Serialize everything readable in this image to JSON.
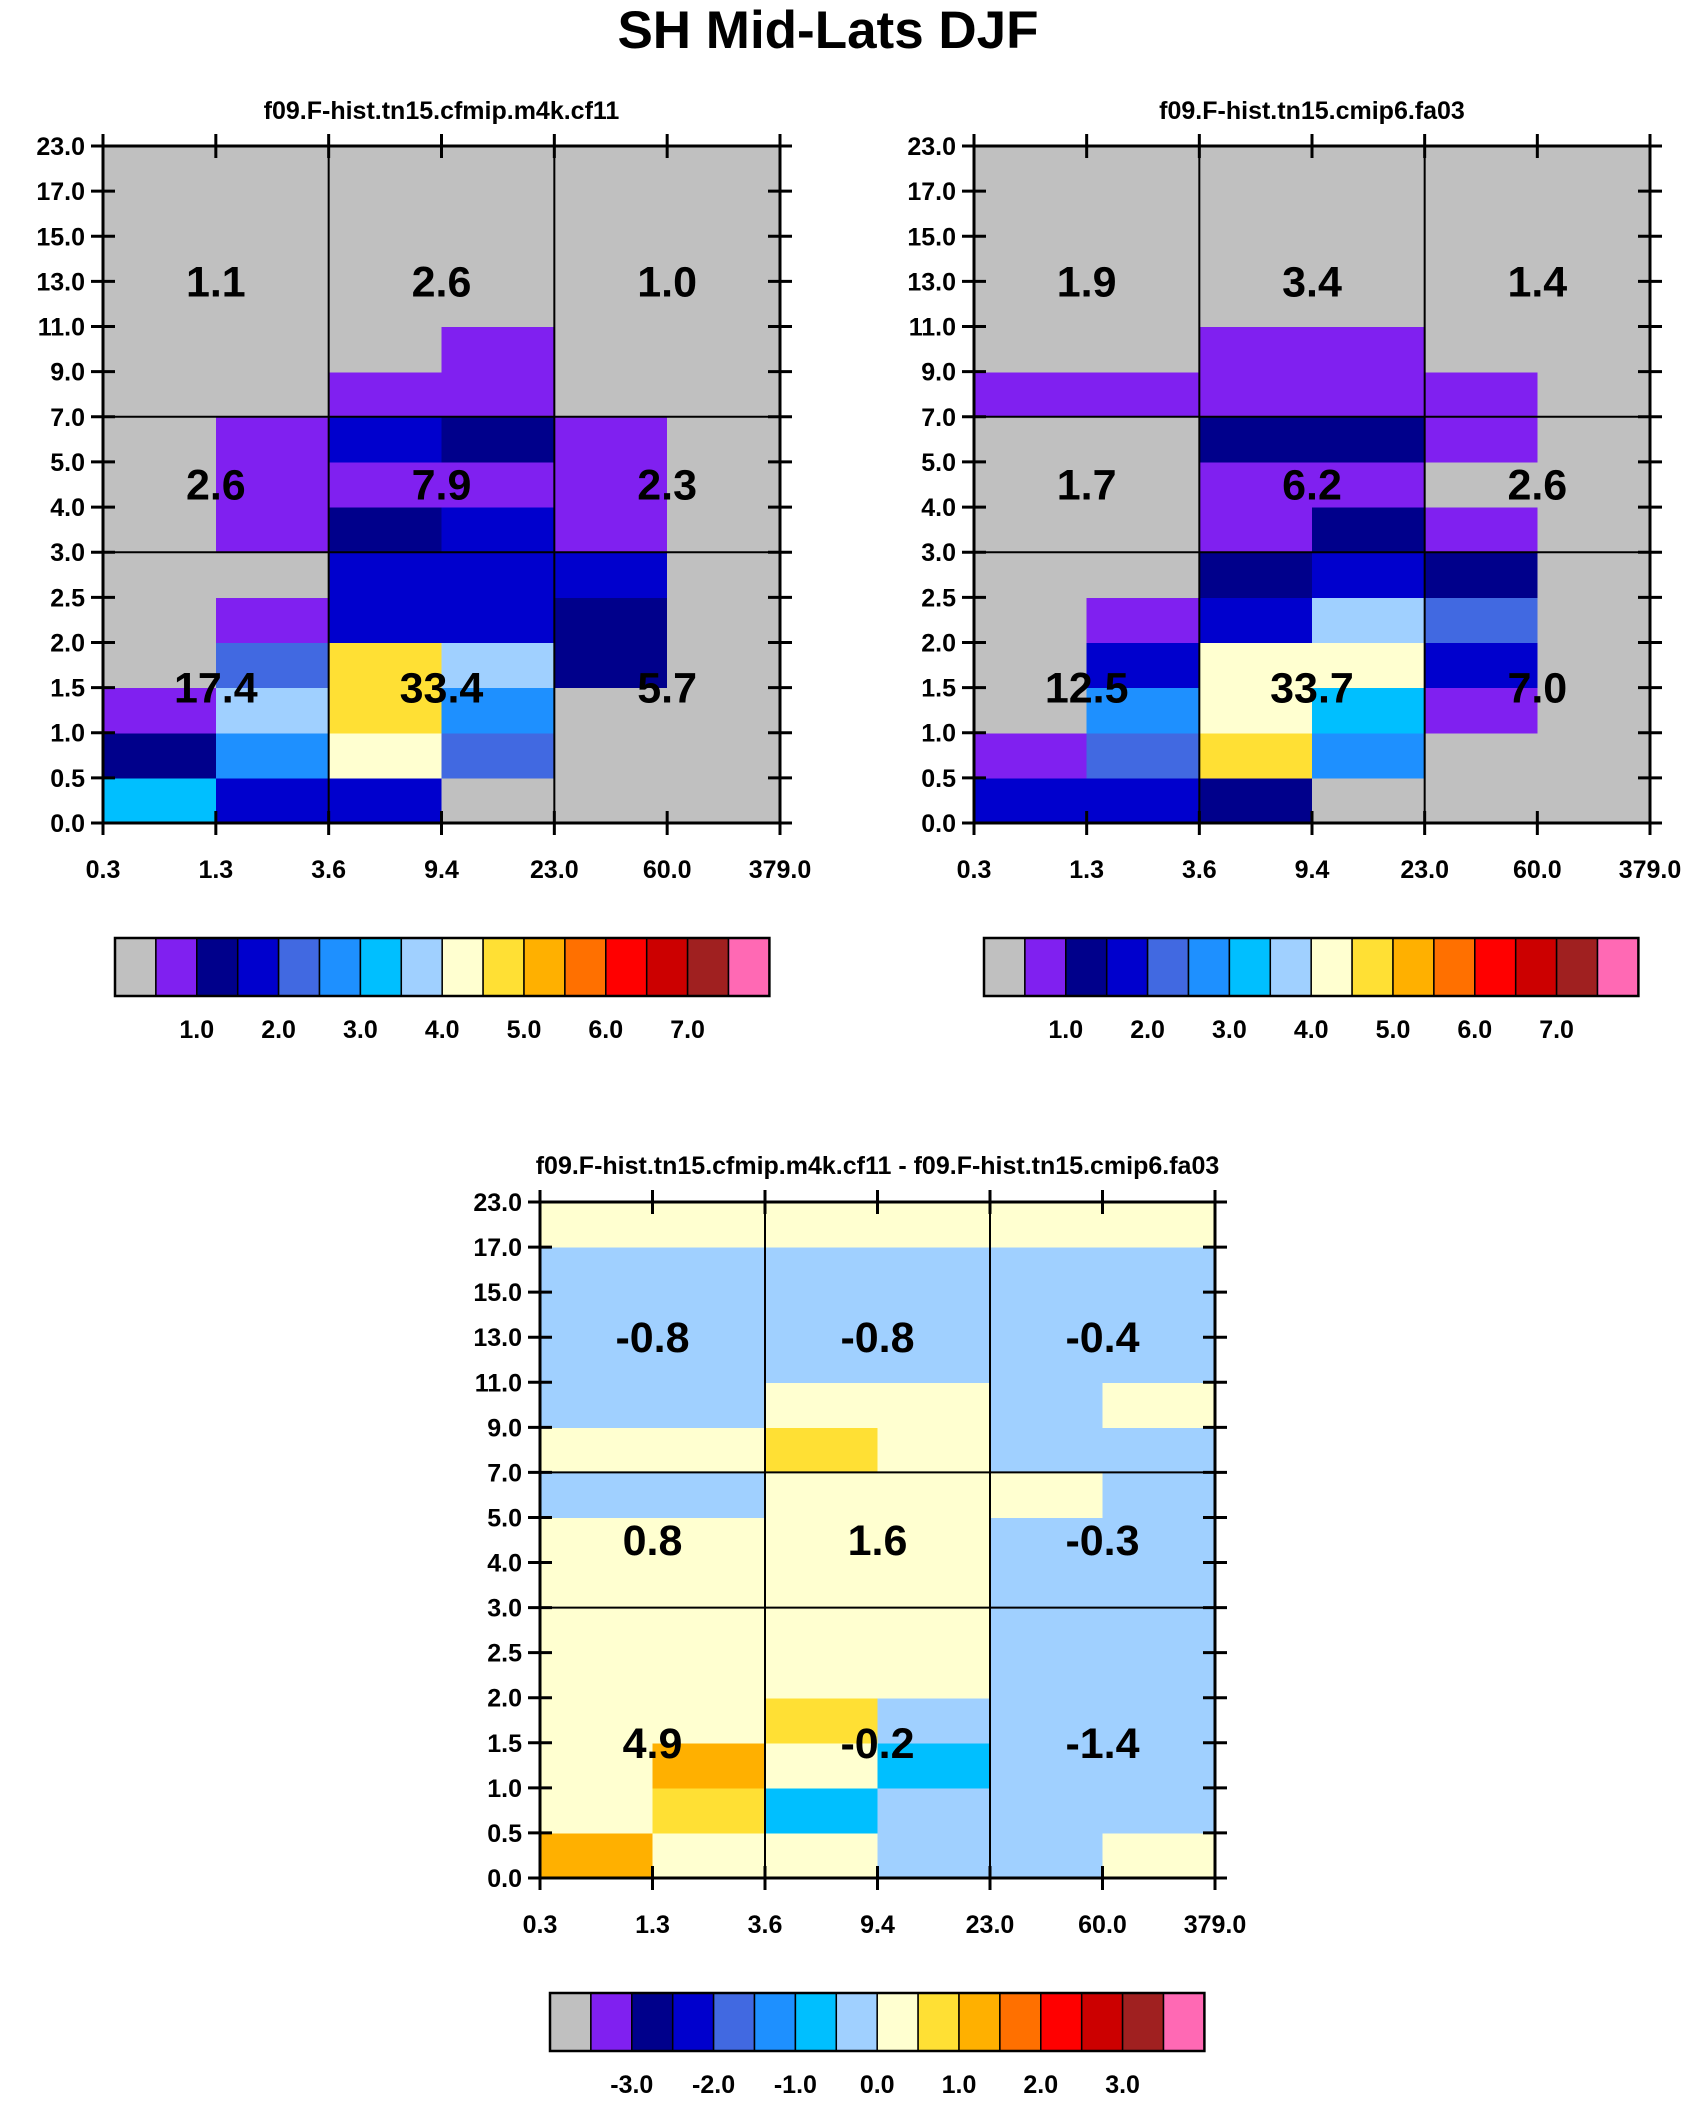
{
  "figure_title": "SH Mid-Lats DJF",
  "colors": {
    "missing": "#c0c0c0",
    "levels": [
      "#c0c0c0",
      "#8020f0",
      "#00008b",
      "#0000cd",
      "#4169e1",
      "#1e90ff",
      "#00bfff",
      "#a0d0ff",
      "#ffffd0",
      "#ffe034",
      "#ffb000",
      "#ff7000",
      "#ff0000",
      "#cc0000",
      "#a02020",
      "#ff69b4"
    ]
  },
  "chart_data": [
    {
      "type": "heatmap",
      "title": "f09.F-hist.tn15.cfmip.m4k.cf11",
      "x_tick_labels": [
        "0.3",
        "1.3",
        "3.6",
        "9.4",
        "23.0",
        "60.0",
        "379.0"
      ],
      "y_tick_labels": [
        "0.0",
        "0.5",
        "1.0",
        "1.5",
        "2.0",
        "2.5",
        "3.0",
        "4.0",
        "5.0",
        "7.0",
        "9.0",
        "11.0",
        "13.0",
        "15.0",
        "17.0",
        "23.0"
      ],
      "grid_x_breaks": [
        2,
        4
      ],
      "grid_y_breaks": [
        6,
        9
      ],
      "cells": [
        [
          6,
          3,
          3,
          0,
          0,
          0
        ],
        [
          2,
          5,
          8,
          4,
          0,
          0
        ],
        [
          1,
          7,
          9,
          5,
          0,
          0
        ],
        [
          0,
          4,
          9,
          7,
          2,
          0
        ],
        [
          0,
          1,
          3,
          3,
          2,
          0
        ],
        [
          0,
          0,
          3,
          3,
          3,
          0
        ],
        [
          0,
          1,
          2,
          3,
          1,
          0
        ],
        [
          0,
          1,
          1,
          1,
          1,
          0
        ],
        [
          0,
          1,
          3,
          2,
          1,
          0
        ],
        [
          0,
          0,
          1,
          1,
          0,
          0
        ],
        [
          0,
          0,
          0,
          1,
          0,
          0
        ],
        [
          0,
          0,
          0,
          0,
          0,
          0
        ],
        [
          0,
          0,
          0,
          0,
          0,
          0
        ],
        [
          0,
          0,
          0,
          0,
          0,
          0
        ],
        [
          0,
          0,
          0,
          0,
          0,
          0
        ]
      ],
      "block_values": [
        [
          "17.4",
          "33.4",
          "5.7"
        ],
        [
          "2.6",
          "7.9",
          "2.3"
        ],
        [
          "1.1",
          "2.6",
          "1.0"
        ]
      ],
      "colorbar_tick_labels": [
        "1.0",
        "2.0",
        "3.0",
        "4.0",
        "5.0",
        "6.0",
        "7.0"
      ]
    },
    {
      "type": "heatmap",
      "title": "f09.F-hist.tn15.cmip6.fa03",
      "x_tick_labels": [
        "0.3",
        "1.3",
        "3.6",
        "9.4",
        "23.0",
        "60.0",
        "379.0"
      ],
      "y_tick_labels": [
        "0.0",
        "0.5",
        "1.0",
        "1.5",
        "2.0",
        "2.5",
        "3.0",
        "4.0",
        "5.0",
        "7.0",
        "9.0",
        "11.0",
        "13.0",
        "15.0",
        "17.0",
        "23.0"
      ],
      "grid_x_breaks": [
        2,
        4
      ],
      "grid_y_breaks": [
        6,
        9
      ],
      "cells": [
        [
          3,
          3,
          2,
          0,
          0,
          0
        ],
        [
          1,
          4,
          9,
          5,
          0,
          0
        ],
        [
          0,
          5,
          8,
          6,
          1,
          0
        ],
        [
          0,
          3,
          8,
          8,
          3,
          0
        ],
        [
          0,
          1,
          3,
          7,
          4,
          0
        ],
        [
          0,
          0,
          2,
          3,
          2,
          0
        ],
        [
          0,
          0,
          1,
          2,
          1,
          0
        ],
        [
          0,
          0,
          1,
          1,
          0,
          0
        ],
        [
          0,
          0,
          2,
          2,
          1,
          0
        ],
        [
          1,
          1,
          1,
          1,
          1,
          0
        ],
        [
          0,
          0,
          1,
          1,
          0,
          0
        ],
        [
          0,
          0,
          0,
          0,
          0,
          0
        ],
        [
          0,
          0,
          0,
          0,
          0,
          0
        ],
        [
          0,
          0,
          0,
          0,
          0,
          0
        ],
        [
          0,
          0,
          0,
          0,
          0,
          0
        ]
      ],
      "block_values": [
        [
          "12.5",
          "33.7",
          "7.0"
        ],
        [
          "1.7",
          "6.2",
          "2.6"
        ],
        [
          "1.9",
          "3.4",
          "1.4"
        ]
      ],
      "colorbar_tick_labels": [
        "1.0",
        "2.0",
        "3.0",
        "4.0",
        "5.0",
        "6.0",
        "7.0"
      ]
    },
    {
      "type": "heatmap",
      "title": "f09.F-hist.tn15.cfmip.m4k.cf11 - f09.F-hist.tn15.cmip6.fa03",
      "x_tick_labels": [
        "0.3",
        "1.3",
        "3.6",
        "9.4",
        "23.0",
        "60.0",
        "379.0"
      ],
      "y_tick_labels": [
        "0.0",
        "0.5",
        "1.0",
        "1.5",
        "2.0",
        "2.5",
        "3.0",
        "4.0",
        "5.0",
        "7.0",
        "9.0",
        "11.0",
        "13.0",
        "15.0",
        "17.0",
        "23.0"
      ],
      "grid_x_breaks": [
        2,
        4
      ],
      "grid_y_breaks": [
        6,
        9
      ],
      "cells": [
        [
          10,
          8,
          8,
          7,
          7,
          8
        ],
        [
          8,
          9,
          6,
          7,
          7,
          7
        ],
        [
          8,
          10,
          8,
          6,
          7,
          7
        ],
        [
          8,
          8,
          9,
          7,
          7,
          7
        ],
        [
          8,
          8,
          8,
          8,
          7,
          7
        ],
        [
          8,
          8,
          8,
          8,
          7,
          7
        ],
        [
          8,
          8,
          8,
          8,
          7,
          7
        ],
        [
          8,
          8,
          8,
          8,
          7,
          7
        ],
        [
          7,
          7,
          8,
          8,
          8,
          7
        ],
        [
          8,
          8,
          9,
          8,
          7,
          7
        ],
        [
          7,
          7,
          8,
          8,
          7,
          8
        ],
        [
          7,
          7,
          7,
          7,
          7,
          7
        ],
        [
          7,
          7,
          7,
          7,
          7,
          7
        ],
        [
          7,
          7,
          7,
          7,
          7,
          7
        ],
        [
          8,
          8,
          8,
          8,
          8,
          8
        ]
      ],
      "block_values": [
        [
          "4.9",
          "-0.2",
          "-1.4"
        ],
        [
          "0.8",
          "1.6",
          "-0.3"
        ],
        [
          "-0.8",
          "-0.8",
          "-0.4"
        ]
      ],
      "colorbar_tick_labels": [
        "-3.0",
        "-2.0",
        "-1.0",
        "0.0",
        "1.0",
        "2.0",
        "3.0"
      ]
    }
  ]
}
